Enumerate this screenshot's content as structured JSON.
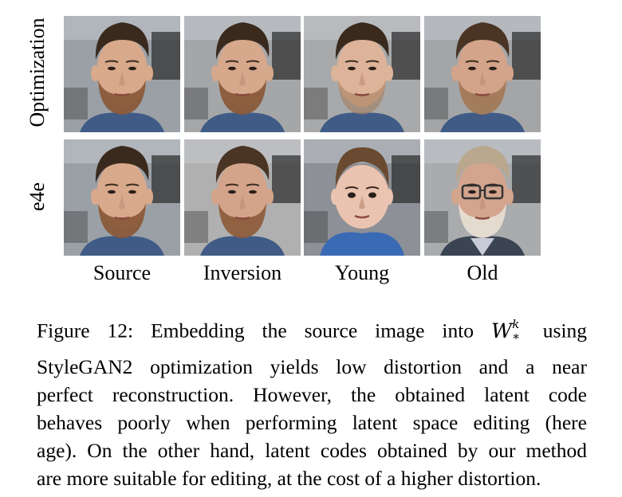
{
  "figure": {
    "row_labels": [
      "Optimization",
      "e4e"
    ],
    "column_labels": [
      "Source",
      "Inversion",
      "Young",
      "Old"
    ],
    "grid": [
      [
        {
          "row": "Optimization",
          "col": "Source",
          "description": "bearded man, dark brown hair, blue jacket",
          "bg": "#9aa0a6",
          "skin": "#d9a98c",
          "hair": "#3a2a1e",
          "beard": "#8a5a3a",
          "shirt": "#3f5b86"
        },
        {
          "row": "Optimization",
          "col": "Inversion",
          "description": "bearded man reconstruction",
          "bg": "#a4a6a8",
          "skin": "#d6a88c",
          "hair": "#3a2a1e",
          "beard": "#8a5a3a",
          "shirt": "#3f5b86"
        },
        {
          "row": "Optimization",
          "col": "Young",
          "description": "younger-looking man, light stubble",
          "bg": "#a8a9aa",
          "skin": "#ddb49a",
          "hair": "#3a2a1e",
          "beard": "#a07a5a",
          "shirt": "#3f5b86"
        },
        {
          "row": "Optimization",
          "col": "Old",
          "description": "older-looking bearded man",
          "bg": "#a3a5a7",
          "skin": "#d3a48a",
          "hair": "#4a3424",
          "beard": "#a27a58",
          "shirt": "#3f5b86"
        }
      ],
      [
        {
          "row": "e4e",
          "col": "Source",
          "description": "bearded man, dark brown hair, blue jacket",
          "bg": "#9aa0a6",
          "skin": "#d9a98c",
          "hair": "#3a2a1e",
          "beard": "#8a5a3a",
          "shirt": "#3f5b86"
        },
        {
          "row": "e4e",
          "col": "Inversion",
          "description": "bearded man, smoother reconstruction",
          "bg": "#b0b0b0",
          "skin": "#d4a48a",
          "hair": "#4a3424",
          "beard": "#8e5e3e",
          "shirt": "#3f5b86"
        },
        {
          "row": "e4e",
          "col": "Young",
          "description": "young boy, brown hair, blue shirt",
          "bg": "#8d9096",
          "skin": "#eac4b0",
          "hair": "#6a4a30",
          "beard": "none",
          "shirt": "#3b6ab5"
        },
        {
          "row": "e4e",
          "col": "Old",
          "description": "old man, grey hair, glasses, white goatee, dark suit",
          "bg": "#a9abad",
          "skin": "#d3a48e",
          "hair": "#b9a78e",
          "beard": "#e6ddd2",
          "shirt": "#3a4452"
        }
      ]
    ]
  },
  "caption": {
    "lines": [
      "Figure 12: Embedding the source image into",
      "StyleGAN2 optimization yields low distortion and a near",
      "perfect reconstruction. However, the obtained latent code",
      "behaves poorly when performing latent space editing (here",
      "age). On the other hand, latent codes obtained by our method",
      "are more suitable for editing, at the cost of a higher distortion."
    ],
    "math_symbol": "W",
    "math_superscript": "k",
    "math_subscript": "*",
    "line1_after_math": "using"
  }
}
